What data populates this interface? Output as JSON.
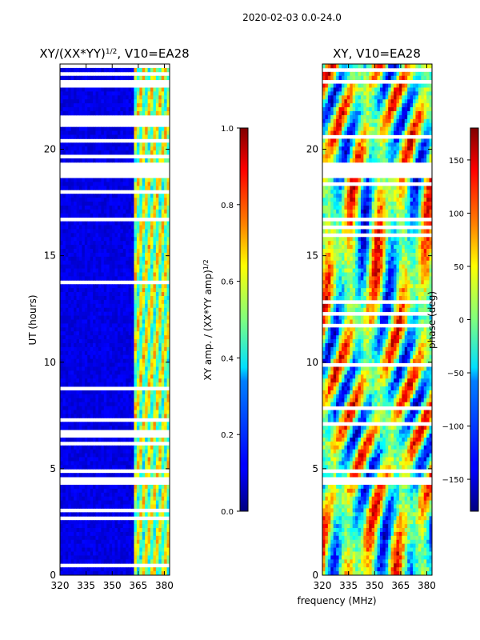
{
  "figure_title": "2020-02-03 0.0-24.0",
  "chart_data": [
    {
      "type": "heatmap",
      "panel": "amplitude",
      "title_main": "XY/(XX*YY)",
      "title_exp": "1/2",
      "title_tail": ", V10=EA28",
      "xlabel": "",
      "ylabel": "UT (hours)",
      "xlim": [
        320,
        383
      ],
      "ylim": [
        0,
        24
      ],
      "xticks": [
        320,
        335,
        350,
        365,
        380
      ],
      "yticks": [
        0,
        5,
        10,
        15,
        20
      ],
      "colorbar": {
        "label_main": "XY amp. / (XX*YY amp)",
        "label_exp": "1/2",
        "range": [
          0.0,
          1.0
        ],
        "ticks": [
          "0.0",
          "0.2",
          "0.4",
          "0.6",
          "0.8",
          "1.0"
        ],
        "tick_values": [
          0.0,
          0.2,
          0.4,
          0.6,
          0.8,
          1.0
        ],
        "colormap": "jet"
      },
      "data_gaps_ut": [
        [
          4.2,
          4.6
        ],
        [
          18.6,
          19.3
        ],
        [
          20.3,
          20.5
        ],
        [
          21.0,
          21.6
        ],
        [
          23.0,
          23.2
        ]
      ],
      "bright_band_mhz": [
        363,
        383
      ]
    },
    {
      "type": "heatmap",
      "panel": "phase",
      "title": "XY, V10=EA28",
      "xlabel": "frequency (MHz)",
      "ylabel": "",
      "xlim": [
        320,
        383
      ],
      "ylim": [
        0,
        24
      ],
      "xticks": [
        320,
        335,
        350,
        365,
        380
      ],
      "yticks": [
        0,
        5,
        10,
        15,
        20
      ],
      "colorbar": {
        "label": "phase (deg)",
        "range": [
          -180,
          180
        ],
        "ticks": [
          "150",
          "100",
          "50",
          "0",
          "−50",
          "−100",
          "−150"
        ],
        "tick_values": [
          150,
          100,
          50,
          0,
          -50,
          -100,
          -150
        ],
        "colormap": "jet"
      },
      "data_gaps_ut": [
        [
          4.2,
          4.6
        ],
        [
          18.6,
          19.3
        ],
        [
          23.0,
          23.2
        ]
      ]
    }
  ]
}
